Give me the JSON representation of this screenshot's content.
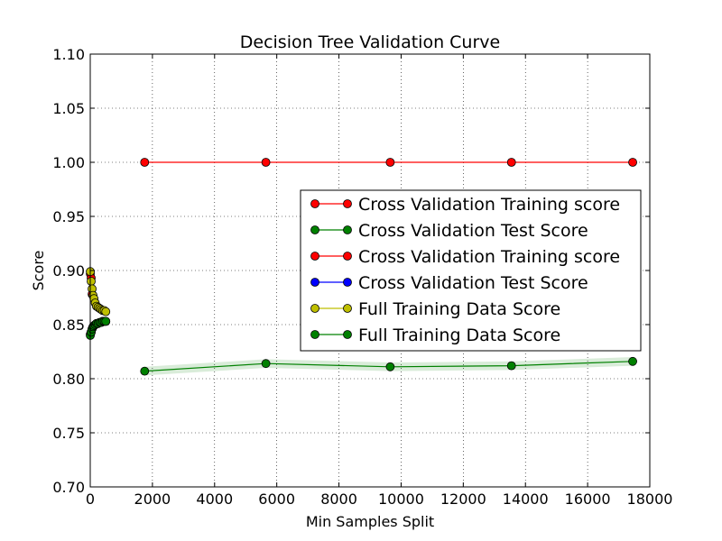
{
  "chart_data": {
    "type": "line",
    "title": "Decision Tree Validation Curve",
    "xlabel": "Min Samples Split",
    "ylabel": "Score",
    "xlim": [
      0,
      18000
    ],
    "ylim": [
      0.7,
      1.1
    ],
    "xticks": [
      0,
      2000,
      4000,
      6000,
      8000,
      10000,
      12000,
      14000,
      16000,
      18000
    ],
    "yticks": [
      0.7,
      0.75,
      0.8,
      0.85,
      0.9,
      0.95,
      1.0,
      1.05,
      1.1
    ],
    "xtick_labels": [
      "0",
      "2000",
      "4000",
      "6000",
      "8000",
      "10000",
      "12000",
      "14000",
      "16000",
      "18000"
    ],
    "ytick_labels": [
      "0.70",
      "0.75",
      "0.80",
      "0.85",
      "0.90",
      "0.95",
      "1.00",
      "1.05",
      "1.10"
    ],
    "grid": true,
    "legend_position": "center-right",
    "series": [
      {
        "name": "Cross Validation Training score",
        "color": "#ff0000",
        "x": [
          1750,
          5650,
          9650,
          13550,
          17450
        ],
        "y": [
          1.0,
          1.0,
          1.0,
          1.0,
          1.0
        ]
      },
      {
        "name": "Cross Validation Test Score",
        "color": "#008000",
        "x": [
          1750,
          5650,
          9650,
          13550,
          17450
        ],
        "y": [
          0.807,
          0.814,
          0.811,
          0.812,
          0.816
        ],
        "band": [
          0.004,
          0.004,
          0.004,
          0.004,
          0.004
        ]
      },
      {
        "name": "Cross Validation Training score",
        "color": "#ff0000",
        "x": [
          2,
          30,
          60
        ],
        "y": [
          0.897,
          0.893,
          0.878
        ]
      },
      {
        "name": "Cross Validation Test Score",
        "color": "#0000ff",
        "x": [
          2,
          30,
          60,
          90,
          120,
          160,
          200,
          250,
          300,
          350,
          400,
          450,
          500
        ],
        "y": [
          0.841,
          0.843,
          0.846,
          0.848,
          0.849,
          0.85,
          0.851,
          0.851,
          0.852,
          0.852,
          0.853,
          0.853,
          0.853
        ],
        "band": [
          0.004,
          0.004,
          0.004,
          0.003,
          0.003,
          0.003,
          0.003,
          0.003,
          0.003,
          0.003,
          0.003,
          0.003,
          0.003
        ]
      },
      {
        "name": "Full Training Data Score",
        "color": "#bfbf00",
        "x": [
          2,
          30,
          60,
          90,
          120,
          160,
          200,
          250,
          300,
          350,
          400,
          450,
          500
        ],
        "y": [
          0.899,
          0.89,
          0.883,
          0.877,
          0.874,
          0.87,
          0.867,
          0.866,
          0.865,
          0.864,
          0.863,
          0.863,
          0.862
        ]
      },
      {
        "name": "Full Training Data Score",
        "color": "#008000",
        "x": [
          2,
          30,
          60,
          90,
          120,
          160,
          200,
          250,
          300,
          350,
          400,
          450,
          500
        ],
        "y": [
          0.84,
          0.843,
          0.846,
          0.848,
          0.849,
          0.85,
          0.851,
          0.851,
          0.852,
          0.852,
          0.853,
          0.853,
          0.853
        ]
      }
    ]
  }
}
